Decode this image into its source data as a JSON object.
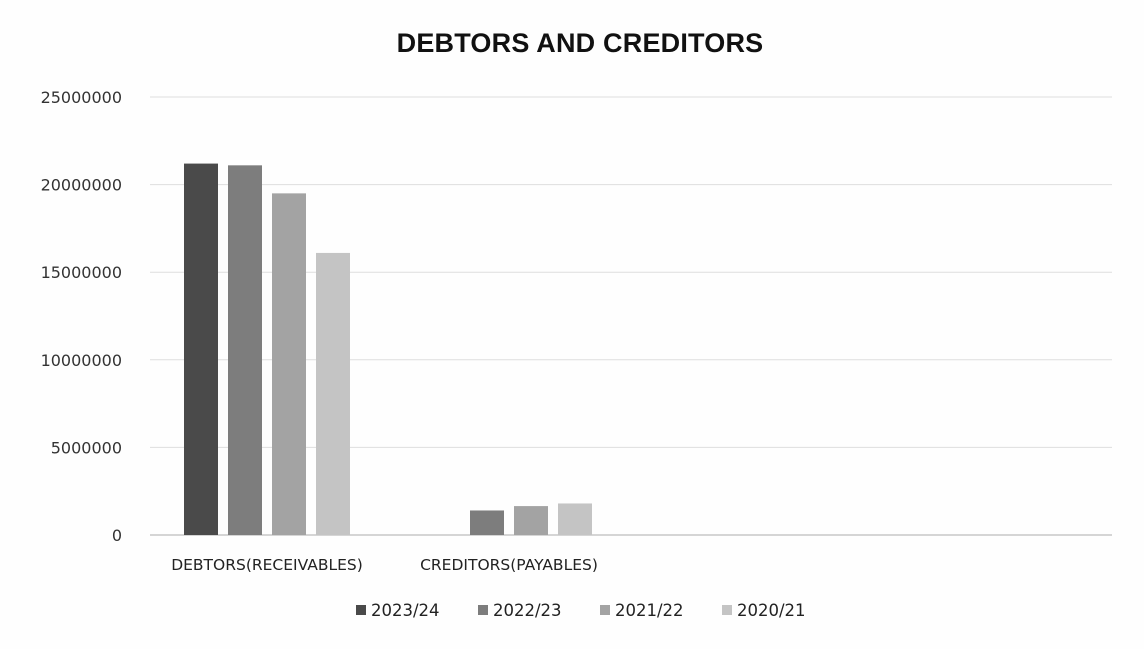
{
  "chart_data": {
    "type": "bar",
    "title": "DEBTORS AND CREDITORS",
    "xlabel": "",
    "ylabel": "",
    "categories": [
      "DEBTORS(RECEIVABLES)",
      "CREDITORS(PAYABLES)"
    ],
    "series": [
      {
        "name": "2023/24",
        "values": [
          21200000,
          null
        ],
        "color": "#4a4a4a"
      },
      {
        "name": "2022/23",
        "values": [
          21100000,
          1400000
        ],
        "color": "#7d7d7d"
      },
      {
        "name": "2021/22",
        "values": [
          19500000,
          1650000
        ],
        "color": "#a3a3a3"
      },
      {
        "name": "2020/21",
        "values": [
          16100000,
          1800000
        ],
        "color": "#c4c4c4"
      }
    ],
    "ylim": [
      0,
      25000000
    ],
    "yticks": [
      "0",
      "5000000",
      "10000000",
      "15000000",
      "20000000",
      "25000000"
    ],
    "grid": true,
    "legend_position": "bottom"
  }
}
